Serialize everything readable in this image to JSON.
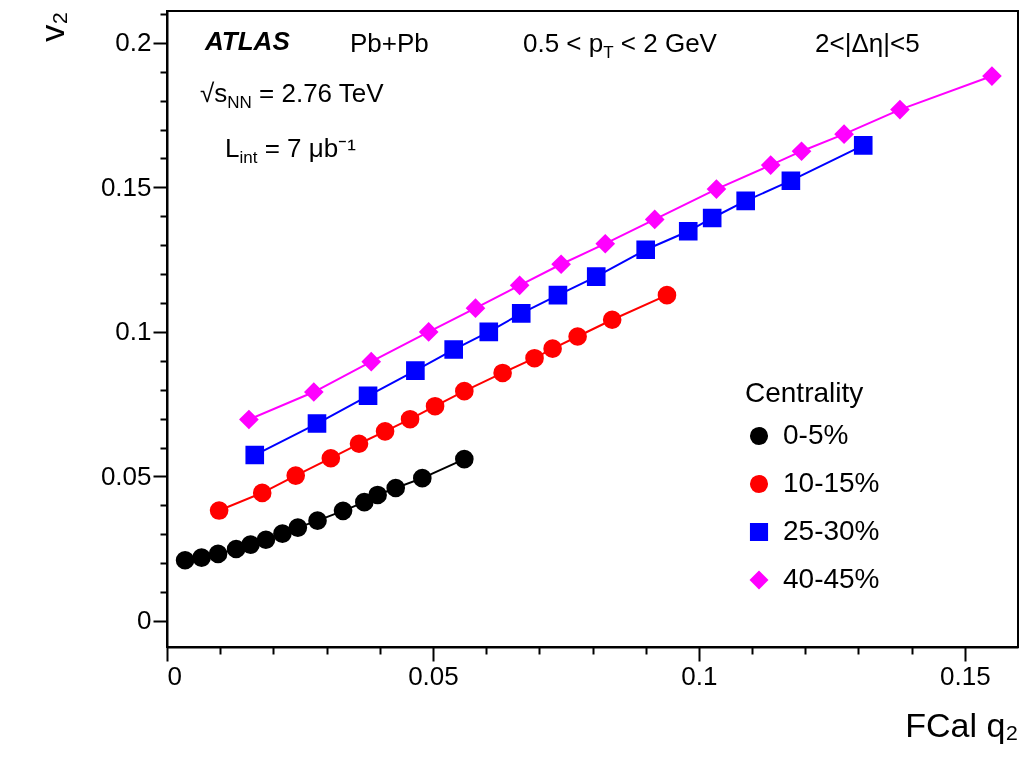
{
  "chart_data": {
    "type": "line",
    "xlabel": "FCal q₂",
    "ylabel": "v₂",
    "legend_title": "Centrality",
    "legend": "bottom right",
    "grid": false,
    "line_style": "solid",
    "xlim": [
      0,
      0.16
    ],
    "ylim": [
      -0.009,
      0.211
    ],
    "xticks": [
      0,
      {
        "value": 0.01,
        "label": null
      },
      {
        "value": 0.02,
        "label": null
      },
      {
        "value": 0.03,
        "label": null
      },
      {
        "value": 0.04,
        "label": null
      },
      0.05,
      {
        "value": 0.06,
        "label": null
      },
      {
        "value": 0.07,
        "label": null
      },
      {
        "value": 0.08,
        "label": null
      },
      {
        "value": 0.09,
        "label": null
      },
      0.1,
      {
        "value": 0.11,
        "label": null
      },
      {
        "value": 0.12,
        "label": null
      },
      {
        "value": 0.13,
        "label": null
      },
      {
        "value": 0.14,
        "label": null
      },
      0.15
    ],
    "yticks": [
      0,
      {
        "value": 0.01,
        "label": null
      },
      {
        "value": 0.02,
        "label": null
      },
      {
        "value": 0.03,
        "label": null
      },
      {
        "value": 0.04,
        "label": null
      },
      0.05,
      {
        "value": 0.06,
        "label": null
      },
      {
        "value": 0.07,
        "label": null
      },
      {
        "value": 0.08,
        "label": null
      },
      {
        "value": 0.09,
        "label": null
      },
      0.1,
      {
        "value": 0.11,
        "label": null
      },
      {
        "value": 0.12,
        "label": null
      },
      {
        "value": 0.13,
        "label": null
      },
      {
        "value": 0.14,
        "label": null
      },
      0.15,
      {
        "value": 0.16,
        "label": null
      },
      {
        "value": 0.17,
        "label": null
      },
      {
        "value": 0.18,
        "label": null
      },
      {
        "value": 0.19,
        "label": null
      },
      0.2,
      {
        "value": 0.21,
        "label": null
      }
    ],
    "annotations": [
      "ATLAS",
      "Pb+Pb",
      "0.5 < p$_{T}$ < 2 GeV",
      "2<|Δη|<5",
      "√s$_{NN}$ = 2.76 TeV",
      "L$_{int}$ = 7 μb⁻¹"
    ],
    "series": [
      {
        "name": "0-5%",
        "color": "#000000",
        "marker": "circle",
        "x": [
          0.0034,
          0.0065,
          0.0096,
          0.013,
          0.0157,
          0.0186,
          0.0217,
          0.0246,
          0.0283,
          0.0331,
          0.0371,
          0.0396,
          0.043,
          0.048,
          0.0559
        ],
        "values": [
          0.021,
          0.0219,
          0.0232,
          0.0249,
          0.0264,
          0.0281,
          0.0302,
          0.0323,
          0.0347,
          0.0381,
          0.0411,
          0.0436,
          0.046,
          0.0494,
          0.056
        ]
      },
      {
        "name": "10-15%",
        "color": "#ff0000",
        "marker": "circle",
        "x": [
          0.0098,
          0.0179,
          0.0242,
          0.0308,
          0.0361,
          0.041,
          0.0457,
          0.0504,
          0.0559,
          0.0631,
          0.0691,
          0.0725,
          0.0772,
          0.0837,
          0.094
        ],
        "values": [
          0.0382,
          0.0443,
          0.0503,
          0.0563,
          0.0613,
          0.0656,
          0.0698,
          0.0743,
          0.0795,
          0.0858,
          0.0909,
          0.0942,
          0.0984,
          0.1042,
          0.1127
        ]
      },
      {
        "name": "25-30%",
        "color": "#0000ff",
        "marker": "square",
        "x": [
          0.0165,
          0.0282,
          0.0378,
          0.0467,
          0.0539,
          0.0605,
          0.0666,
          0.0735,
          0.0807,
          0.09,
          0.098,
          0.1025,
          0.1088,
          0.1173,
          0.1309
        ],
        "values": [
          0.0574,
          0.0683,
          0.0779,
          0.0866,
          0.0939,
          0.1,
          0.1064,
          0.1127,
          0.1191,
          0.1284,
          0.1348,
          0.1394,
          0.1453,
          0.1523,
          0.1645
        ]
      },
      {
        "name": "40-45%",
        "color": "#ff00ff",
        "marker": "diamond",
        "x": [
          0.0154,
          0.0276,
          0.0384,
          0.0492,
          0.058,
          0.0663,
          0.0741,
          0.0824,
          0.0917,
          0.1033,
          0.1135,
          0.1193,
          0.1273,
          0.1378,
          0.1551
        ],
        "values": [
          0.0697,
          0.0792,
          0.0897,
          0.1,
          0.1082,
          0.1161,
          0.1234,
          0.1305,
          0.1389,
          0.1494,
          0.1577,
          0.1625,
          0.1684,
          0.1769,
          0.1885
        ]
      }
    ]
  }
}
